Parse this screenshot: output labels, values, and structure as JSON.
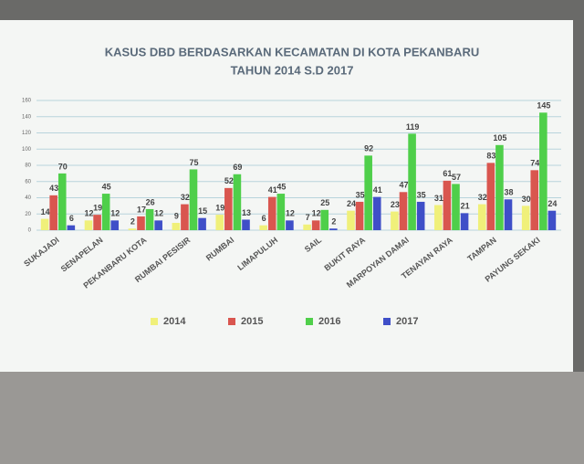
{
  "chart_data": {
    "type": "bar",
    "title": "KASUS DBD BERDASARKAN KECAMATAN DI KOTA PEKANBARU",
    "subtitle": "TAHUN 2014 S.D 2017",
    "categories": [
      "SUKAJADI",
      "SENAPELAN",
      "PEKANBARU KOTA",
      "RUMBAI PESISIR",
      "RUMBAI",
      "LIMAPULUH",
      "SAIL",
      "BUKIT RAYA",
      "MARPOYAN DAMAI",
      "TENAYAN RAYA",
      "TAMPAN",
      "PAYUNG SEKAKI"
    ],
    "series": [
      {
        "name": "2014",
        "color": "#f0f07a",
        "values": [
          14,
          12,
          2,
          9,
          19,
          6,
          7,
          24,
          23,
          31,
          32,
          30
        ]
      },
      {
        "name": "2015",
        "color": "#d9564f",
        "values": [
          43,
          19,
          17,
          32,
          52,
          41,
          12,
          35,
          47,
          61,
          83,
          74
        ]
      },
      {
        "name": "2016",
        "color": "#4fcf4a",
        "values": [
          70,
          45,
          26,
          75,
          69,
          45,
          25,
          92,
          119,
          57,
          105,
          145
        ]
      },
      {
        "name": "2017",
        "color": "#3f4fc8",
        "values": [
          6,
          12,
          12,
          15,
          13,
          12,
          2,
          41,
          35,
          21,
          38,
          24
        ]
      }
    ],
    "ylim": [
      0,
      160
    ],
    "yticks": [
      0,
      20,
      40,
      60,
      80,
      100,
      120,
      140,
      160
    ],
    "grid": true,
    "legend": "bottom"
  }
}
